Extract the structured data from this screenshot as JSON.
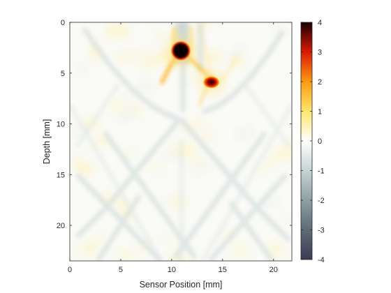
{
  "chart_data": {
    "type": "heatmap",
    "title": "",
    "xlabel": "Sensor Position [mm]",
    "ylabel": "Depth [mm]",
    "xlim": [
      0,
      21.8
    ],
    "ylim": [
      0,
      23.5
    ],
    "y_direction": "reverse",
    "xticks": [
      0,
      5,
      10,
      15,
      20
    ],
    "yticks": [
      0,
      5,
      10,
      15,
      20
    ],
    "colorbar": {
      "range": [
        -4,
        4
      ],
      "ticks": [
        4,
        3,
        2,
        1,
        0,
        -1,
        -2,
        -3,
        -4
      ],
      "colormap": "diverging: dark slate (-4) → gray-cyan → white (0) → yellow → orange → red → black (4)",
      "colormap_stops": [
        {
          "value": -4,
          "color": "#3b3b52"
        },
        {
          "value": -3,
          "color": "#5d6b78"
        },
        {
          "value": -2,
          "color": "#8ea1a3"
        },
        {
          "value": -1,
          "color": "#c6d4d3"
        },
        {
          "value": 0,
          "color": "#ffffff"
        },
        {
          "value": 1,
          "color": "#ffe66a"
        },
        {
          "value": 2,
          "color": "#ff9a10"
        },
        {
          "value": 3,
          "color": "#d81a00"
        },
        {
          "value": 4,
          "color": "#1a0000"
        }
      ]
    },
    "features": [
      {
        "kind": "peak",
        "x": 10.9,
        "y": 2.8,
        "value": 4
      },
      {
        "kind": "peak",
        "x": 13.9,
        "y": 5.9,
        "value": 3.2
      }
    ]
  }
}
